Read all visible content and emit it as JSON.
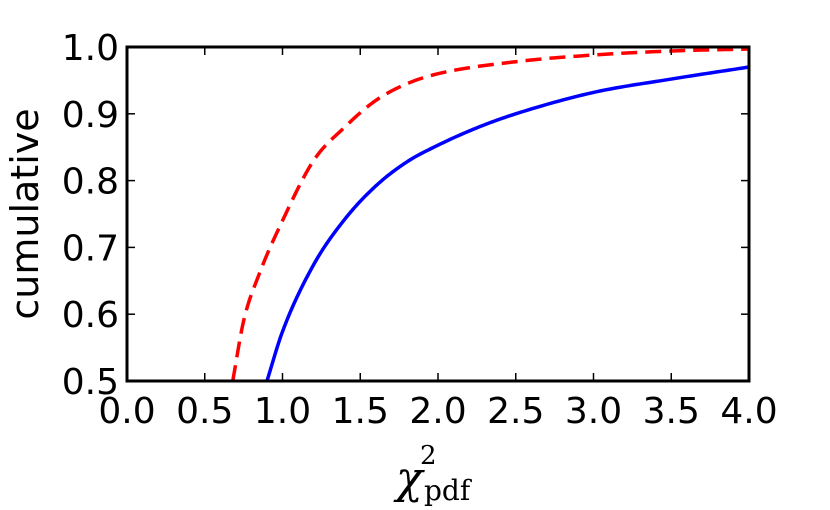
{
  "chart_data": {
    "type": "line",
    "title": "",
    "xlabel": "χ²pdf",
    "xlabel_parts": {
      "main": "χ",
      "sup": "2",
      "sub": "pdf"
    },
    "ylabel": "cumulative",
    "xlim": [
      0.0,
      4.0
    ],
    "ylim": [
      0.5,
      1.0
    ],
    "xticks": [
      "0.0",
      "0.5",
      "1.0",
      "1.5",
      "2.0",
      "2.5",
      "3.0",
      "3.5",
      "4.0"
    ],
    "yticks": [
      "0.5",
      "0.6",
      "0.7",
      "0.8",
      "0.9",
      "1.0"
    ],
    "grid": false,
    "series": [
      {
        "color": "#ff0000",
        "linestyle": "dashed",
        "x": [
          0.68,
          0.75,
          0.85,
          1.0,
          1.2,
          1.4,
          1.6,
          1.8,
          2.0,
          2.5,
          3.0,
          3.5,
          4.0
        ],
        "y": [
          0.5,
          0.59,
          0.66,
          0.74,
          0.83,
          0.88,
          0.92,
          0.945,
          0.96,
          0.978,
          0.988,
          0.994,
          0.997
        ]
      },
      {
        "color": "#0000ff",
        "linestyle": "solid",
        "x": [
          0.9,
          1.0,
          1.2,
          1.4,
          1.6,
          1.8,
          2.0,
          2.25,
          2.5,
          3.0,
          3.5,
          4.0
        ],
        "y": [
          0.5,
          0.574,
          0.674,
          0.742,
          0.792,
          0.828,
          0.853,
          0.879,
          0.9,
          0.932,
          0.952,
          0.97
        ]
      }
    ]
  }
}
